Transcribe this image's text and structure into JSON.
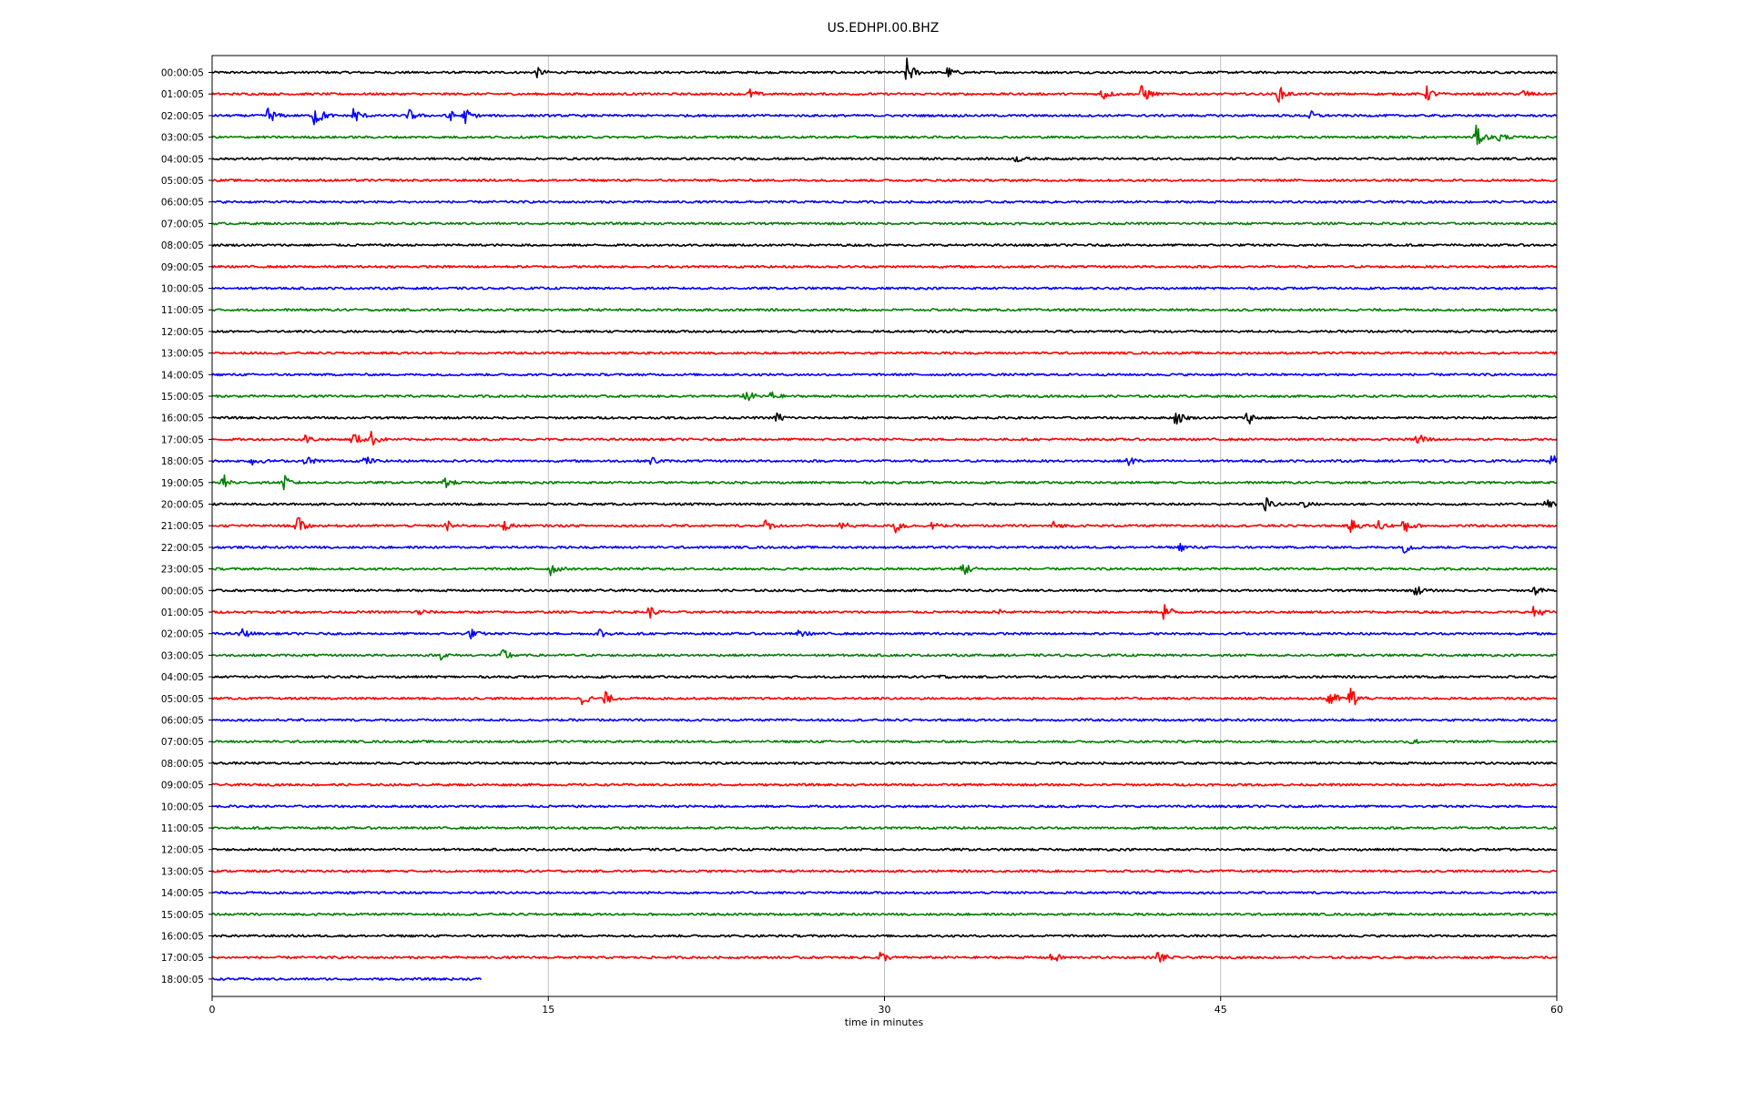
{
  "chart_data": {
    "type": "line",
    "title": "US.EDHPI.00.BHZ",
    "xlabel": "time in minutes",
    "ylabel": "",
    "xlim": [
      0,
      60
    ],
    "x_ticks": [
      0,
      15,
      30,
      45,
      60
    ],
    "x_tick_labels": [
      "0",
      "15",
      "30",
      "45",
      "60"
    ],
    "grid": "vertical",
    "series_colors": [
      "#000000",
      "#ff0000",
      "#0000ff",
      "#008000"
    ],
    "row_labels": [
      "00:00:05",
      "01:00:05",
      "02:00:05",
      "03:00:05",
      "04:00:05",
      "05:00:05",
      "06:00:05",
      "07:00:05",
      "08:00:05",
      "09:00:05",
      "10:00:05",
      "11:00:05",
      "12:00:05",
      "13:00:05",
      "14:00:05",
      "15:00:05",
      "16:00:05",
      "17:00:05",
      "18:00:05",
      "19:00:05",
      "20:00:05",
      "21:00:05",
      "22:00:05",
      "23:00:05",
      "00:00:05",
      "01:00:05",
      "02:00:05",
      "03:00:05",
      "04:00:05",
      "05:00:05",
      "06:00:05",
      "07:00:05",
      "08:00:05",
      "09:00:05",
      "10:00:05",
      "11:00:05",
      "12:00:05",
      "13:00:05",
      "14:00:05",
      "15:00:05",
      "16:00:05",
      "17:00:05",
      "18:00:05"
    ],
    "last_row_end_minute": 12,
    "events": [
      {
        "row": 0,
        "minute": 14.5,
        "amp": 0.5
      },
      {
        "row": 0,
        "minute": 31.0,
        "amp": 1.5
      },
      {
        "row": 0,
        "minute": 32.8,
        "amp": 0.6
      },
      {
        "row": 1,
        "minute": 24.0,
        "amp": 0.5
      },
      {
        "row": 1,
        "minute": 39.7,
        "amp": 0.8
      },
      {
        "row": 1,
        "minute": 41.5,
        "amp": 1.2
      },
      {
        "row": 1,
        "minute": 47.6,
        "amp": 0.9
      },
      {
        "row": 1,
        "minute": 54.2,
        "amp": 0.8
      },
      {
        "row": 1,
        "minute": 58.5,
        "amp": 0.5
      },
      {
        "row": 2,
        "minute": 2.5,
        "amp": 1.0
      },
      {
        "row": 2,
        "minute": 4.6,
        "amp": 1.6
      },
      {
        "row": 2,
        "minute": 6.3,
        "amp": 1.0
      },
      {
        "row": 2,
        "minute": 8.8,
        "amp": 0.6
      },
      {
        "row": 2,
        "minute": 10.5,
        "amp": 0.8
      },
      {
        "row": 2,
        "minute": 11.3,
        "amp": 0.8
      },
      {
        "row": 2,
        "minute": 49.0,
        "amp": 0.5
      },
      {
        "row": 3,
        "minute": 56.4,
        "amp": 1.2
      },
      {
        "row": 3,
        "minute": 57.4,
        "amp": 0.6
      },
      {
        "row": 4,
        "minute": 35.9,
        "amp": 0.4
      },
      {
        "row": 15,
        "minute": 23.8,
        "amp": 0.8
      },
      {
        "row": 15,
        "minute": 24.9,
        "amp": 0.6
      },
      {
        "row": 16,
        "minute": 25.2,
        "amp": 0.6
      },
      {
        "row": 16,
        "minute": 43.0,
        "amp": 0.9
      },
      {
        "row": 16,
        "minute": 46.2,
        "amp": 0.8
      },
      {
        "row": 17,
        "minute": 4.1,
        "amp": 0.6
      },
      {
        "row": 17,
        "minute": 6.3,
        "amp": 0.9
      },
      {
        "row": 17,
        "minute": 7.1,
        "amp": 0.8
      },
      {
        "row": 17,
        "minute": 53.8,
        "amp": 1.0
      },
      {
        "row": 18,
        "minute": 1.8,
        "amp": 0.6
      },
      {
        "row": 18,
        "minute": 4.2,
        "amp": 0.6
      },
      {
        "row": 18,
        "minute": 6.8,
        "amp": 0.6
      },
      {
        "row": 18,
        "minute": 19.6,
        "amp": 0.5
      },
      {
        "row": 18,
        "minute": 40.9,
        "amp": 0.5
      },
      {
        "row": 18,
        "minute": 59.8,
        "amp": 0.7
      },
      {
        "row": 19,
        "minute": 0.5,
        "amp": 0.9
      },
      {
        "row": 19,
        "minute": 3.2,
        "amp": 0.8
      },
      {
        "row": 19,
        "minute": 10.4,
        "amp": 0.6
      },
      {
        "row": 20,
        "minute": 47.0,
        "amp": 0.8
      },
      {
        "row": 20,
        "minute": 48.6,
        "amp": 0.5
      },
      {
        "row": 20,
        "minute": 59.5,
        "amp": 0.6
      },
      {
        "row": 21,
        "minute": 3.8,
        "amp": 1.1
      },
      {
        "row": 21,
        "minute": 10.5,
        "amp": 0.5
      },
      {
        "row": 21,
        "minute": 13.0,
        "amp": 0.6
      },
      {
        "row": 21,
        "minute": 24.7,
        "amp": 0.6
      },
      {
        "row": 21,
        "minute": 28.1,
        "amp": 0.5
      },
      {
        "row": 21,
        "minute": 30.5,
        "amp": 0.9
      },
      {
        "row": 21,
        "minute": 32.0,
        "amp": 0.6
      },
      {
        "row": 21,
        "minute": 37.5,
        "amp": 0.5
      },
      {
        "row": 21,
        "minute": 50.8,
        "amp": 0.8
      },
      {
        "row": 21,
        "minute": 52.0,
        "amp": 0.7
      },
      {
        "row": 21,
        "minute": 53.2,
        "amp": 1.0
      },
      {
        "row": 22,
        "minute": 43.2,
        "amp": 0.4
      },
      {
        "row": 22,
        "minute": 53.2,
        "amp": 0.6
      },
      {
        "row": 23,
        "minute": 15.1,
        "amp": 0.7
      },
      {
        "row": 23,
        "minute": 33.5,
        "amp": 1.0
      },
      {
        "row": 24,
        "minute": 53.7,
        "amp": 0.6
      },
      {
        "row": 24,
        "minute": 59.0,
        "amp": 0.5
      },
      {
        "row": 25,
        "minute": 9.2,
        "amp": 0.4
      },
      {
        "row": 25,
        "minute": 19.5,
        "amp": 0.7
      },
      {
        "row": 25,
        "minute": 35.0,
        "amp": 0.5
      },
      {
        "row": 25,
        "minute": 42.5,
        "amp": 1.1
      },
      {
        "row": 25,
        "minute": 59.0,
        "amp": 0.8
      },
      {
        "row": 26,
        "minute": 1.3,
        "amp": 0.6
      },
      {
        "row": 26,
        "minute": 11.5,
        "amp": 0.6
      },
      {
        "row": 26,
        "minute": 17.3,
        "amp": 0.6
      },
      {
        "row": 26,
        "minute": 26.2,
        "amp": 0.4
      },
      {
        "row": 27,
        "minute": 10.2,
        "amp": 0.4
      },
      {
        "row": 27,
        "minute": 13.0,
        "amp": 0.8
      },
      {
        "row": 28,
        "minute": 32.3,
        "amp": 0.3
      },
      {
        "row": 29,
        "minute": 16.5,
        "amp": 0.7
      },
      {
        "row": 29,
        "minute": 17.5,
        "amp": 0.8
      },
      {
        "row": 29,
        "minute": 49.8,
        "amp": 1.3
      },
      {
        "row": 29,
        "minute": 50.8,
        "amp": 1.5
      },
      {
        "row": 31,
        "minute": 53.5,
        "amp": 0.4
      },
      {
        "row": 41,
        "minute": 29.8,
        "amp": 0.7
      },
      {
        "row": 41,
        "minute": 37.5,
        "amp": 0.7
      },
      {
        "row": 41,
        "minute": 42.2,
        "amp": 0.8
      }
    ]
  }
}
